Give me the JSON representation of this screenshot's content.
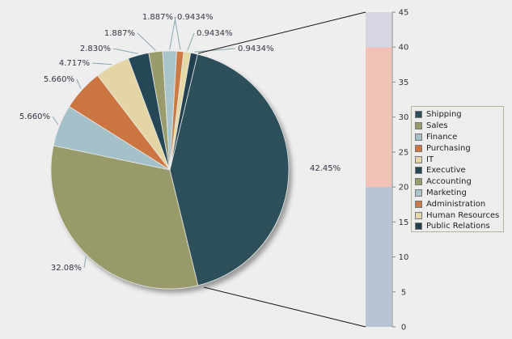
{
  "chart_data": {
    "type": "pie",
    "slices": [
      {
        "label": "Shipping",
        "value": 42.45,
        "label_text": "42.45%",
        "color": "#2c4f59"
      },
      {
        "label": "Sales",
        "value": 32.08,
        "label_text": "32.08%",
        "color": "#999a69"
      },
      {
        "label": "Finance",
        "value": 5.66,
        "label_text": "5.660%",
        "color": "#a4c0c8"
      },
      {
        "label": "Purchasing",
        "value": 5.66,
        "label_text": "5.660%",
        "color": "#cb7540"
      },
      {
        "label": "IT",
        "value": 4.717,
        "label_text": "4.717%",
        "color": "#e4d6a4"
      },
      {
        "label": "Executive",
        "value": 2.83,
        "label_text": "2.830%",
        "color": "#264756"
      },
      {
        "label": "Accounting",
        "value": 1.887,
        "label_text": "1.887%",
        "color": "#9a9b6c"
      },
      {
        "label": "Marketing",
        "value": 1.887,
        "label_text": "1.887%",
        "color": "#a9c4ca"
      },
      {
        "label": "Administration",
        "value": 0.9434,
        "label_text": "0.9434%",
        "color": "#cc7a44"
      },
      {
        "label": "Human Resources",
        "value": 0.9434,
        "label_text": "0.9434%",
        "color": "#e6d9a8"
      },
      {
        "label": "Public Relations",
        "value": 0.9434,
        "label_text": "0.9434%",
        "color": "#22404f"
      }
    ],
    "secondary_bar": {
      "type": "stacked-column",
      "ylim": [
        0,
        45
      ],
      "ticks": [
        "0",
        "5",
        "10",
        "15",
        "20",
        "25",
        "30",
        "35",
        "40",
        "45"
      ],
      "segments": [
        {
          "from": 0,
          "to": 20,
          "color": "#b7c4d2"
        },
        {
          "from": 20,
          "to": 40,
          "color": "#f0c3b6"
        },
        {
          "from": 40,
          "to": 45,
          "color": "#d6d5e4"
        }
      ]
    },
    "legend_position": "right"
  }
}
